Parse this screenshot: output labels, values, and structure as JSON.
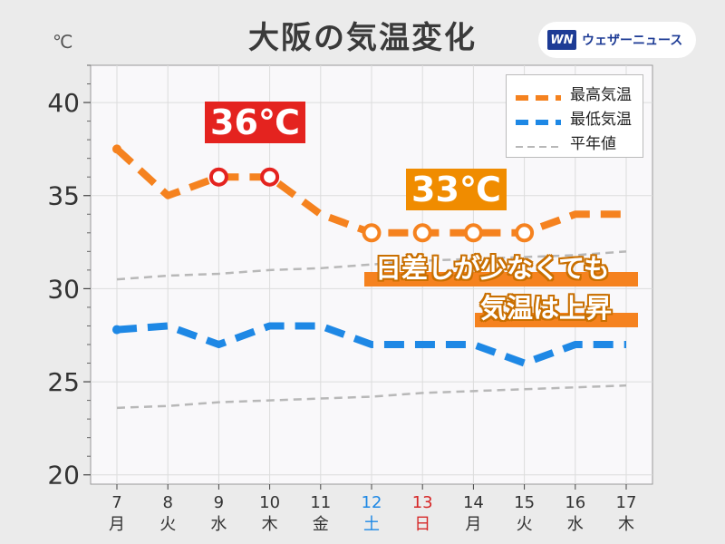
{
  "title": "大阪の気温変化",
  "unit_label": "℃",
  "brand": {
    "logo": "WN",
    "name": "ウェザーニュース"
  },
  "badges": {
    "max_peak": {
      "text": "36℃",
      "color": "#e4231f"
    },
    "max_later": {
      "text": "33℃",
      "color": "#f08c00"
    }
  },
  "annotation": {
    "line1": "日差しが少なくても",
    "line2": "気温は上昇"
  },
  "colors": {
    "max": "#f5821f",
    "min": "#1e88e5",
    "normal": "#b8b8b8",
    "sat": "#1e88e5",
    "sun": "#d62828",
    "weekday": "#333333",
    "plot_bg": "#f9f8fa"
  },
  "chart_data": {
    "type": "line",
    "x_days": [
      "7",
      "8",
      "9",
      "10",
      "11",
      "12",
      "13",
      "14",
      "15",
      "16",
      "17"
    ],
    "x_weekdays": [
      "月",
      "火",
      "水",
      "木",
      "金",
      "土",
      "日",
      "月",
      "火",
      "水",
      "木"
    ],
    "ylim": [
      19.5,
      42
    ],
    "yticks": [
      20,
      25,
      30,
      35,
      40
    ],
    "grid": true,
    "legend_position": "top-right",
    "series": [
      {
        "name": "最高気温",
        "style": "dashed-thick",
        "color": "#f5821f",
        "values": [
          37.5,
          35,
          36,
          36,
          34,
          33,
          33,
          33,
          33,
          34,
          34
        ],
        "markers": [
          2,
          3,
          5,
          6,
          7,
          8
        ]
      },
      {
        "name": "最低気温",
        "style": "dashed-thick",
        "color": "#1e88e5",
        "values": [
          27.8,
          28,
          27,
          28,
          28,
          27,
          27,
          27,
          26,
          27,
          27
        ],
        "markers": []
      },
      {
        "name": "平年値",
        "style": "dashed-thin",
        "color": "#b8b8b8",
        "values": [
          30.5,
          30.7,
          30.8,
          31.0,
          31.1,
          31.3,
          31.5,
          31.6,
          31.7,
          31.8,
          32.0
        ],
        "markers": []
      },
      {
        "style": "dashed-thin",
        "color": "#b8b8b8",
        "values": [
          23.6,
          23.7,
          23.9,
          24.0,
          24.1,
          24.2,
          24.4,
          24.5,
          24.6,
          24.7,
          24.8
        ],
        "markers": []
      }
    ]
  }
}
